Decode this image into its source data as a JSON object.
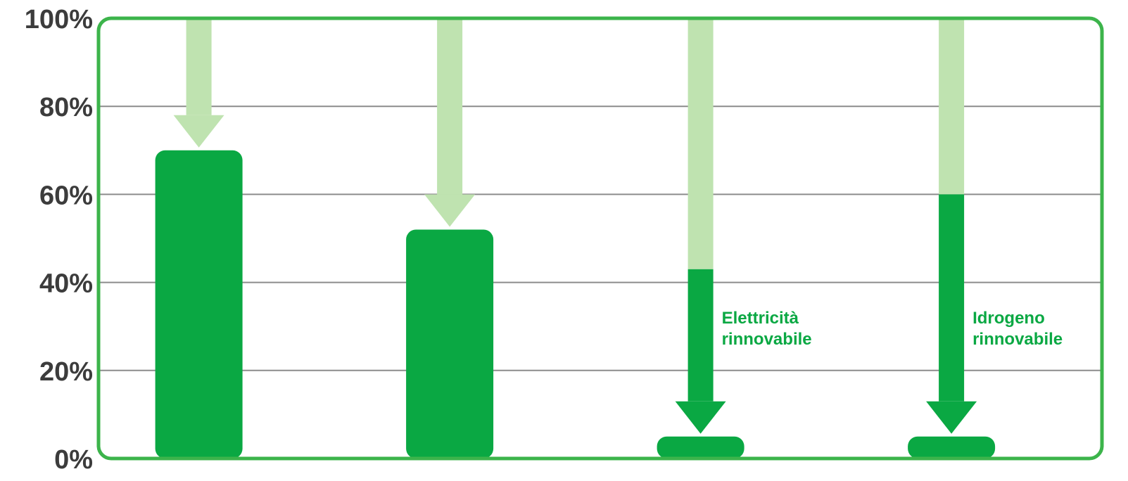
{
  "chart_data": {
    "type": "bar",
    "title": "",
    "xlabel": "",
    "ylabel": "",
    "ylim": [
      0,
      100
    ],
    "yticks": [
      "0%",
      "20%",
      "40%",
      "60%",
      "80%",
      "100%"
    ],
    "grid": true,
    "categories": [
      "",
      "",
      "",
      ""
    ],
    "series": [
      {
        "values": [
          70,
          52,
          5,
          5
        ]
      }
    ],
    "arrows": [
      {
        "from": 100,
        "to": 70,
        "split": null
      },
      {
        "from": 100,
        "to": 52,
        "split": null
      },
      {
        "from": 100,
        "to": 5,
        "split": 43
      },
      {
        "from": 100,
        "to": 5,
        "split": 60
      }
    ],
    "annotations": [
      {
        "category_index": 2,
        "lines": [
          "Elettricità",
          "rinnovabile"
        ]
      },
      {
        "category_index": 3,
        "lines": [
          "Idrogeno",
          "rinnovabile"
        ]
      }
    ]
  },
  "colors": {
    "bar": "#0aa843",
    "arrow_light": "#bfe3b0",
    "arrow_dark": "#0aa843",
    "frame": "#3cb44b",
    "grid": "#8c8c8c",
    "tick_text": "#3c3c3c",
    "annotation_text": "#0aa843"
  }
}
